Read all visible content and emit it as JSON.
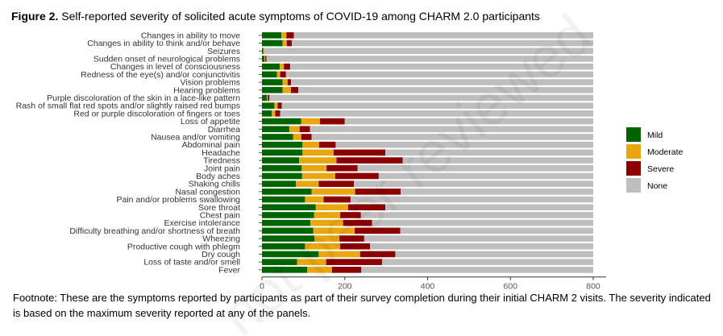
{
  "title_prefix": "Figure 2.",
  "title_text": " Self-reported severity of solicited acute symptoms of COVID-19 among CHARM 2.0 participants",
  "footnote": "Footnote: These are the symptoms reported by participants as part of their survey completion during their initial CHARM 2 visits. The severity indicated is based on the maximum severity reported at any of the panels.",
  "watermark": "not peer reviewed",
  "chart_data": {
    "type": "bar",
    "orientation": "horizontal",
    "stacked": true,
    "xlim": [
      0,
      800
    ],
    "xticks": [
      0,
      200,
      400,
      600,
      800
    ],
    "legend_position": "right",
    "categories": [
      "Changes in ability to move",
      "Changes in ability to think and/or behave",
      "Seizures",
      "Sudden onset of neurological problems",
      "Changes in level of consciousness",
      "Redness of the eye(s) and/or conjunctivitis",
      "Vision problems",
      "Hearing problems",
      "Purple discoloration of the skin in a lace-like pattern",
      "Rash of small flat red spots and/or slightly raised red bumps",
      "Red or purple discoloration of fingers or toes",
      "Loss of appetite",
      "Diarrhea",
      "Nausea and/or vomiting",
      "Abdominal pain",
      "Headache",
      "Tiredness",
      "Joint pain",
      "Body aches",
      "Shaking chills",
      "Nasal congestion",
      "Pain and/or problems swallowing",
      "Sore throat",
      "Chest pain",
      "Exercise intolerance",
      "Difficulty breathing and/or shortness of breath",
      "Wheezing",
      "Productive cough with phlegm",
      "Dry cough",
      "Loss of taste and/or smell",
      "Fever"
    ],
    "series": [
      {
        "name": "Mild",
        "color": "#006400",
        "values": [
          47,
          50,
          3,
          6,
          43,
          36,
          50,
          50,
          12,
          30,
          24,
          95,
          66,
          75,
          98,
          98,
          90,
          96,
          97,
          82,
          120,
          104,
          130,
          126,
          117,
          124,
          127,
          104,
          137,
          85,
          109
        ]
      },
      {
        "name": "Moderate",
        "color": "#E8A70F",
        "values": [
          12,
          10,
          2,
          2,
          10,
          8,
          12,
          20,
          2,
          8,
          8,
          45,
          25,
          20,
          40,
          75,
          90,
          60,
          80,
          55,
          105,
          45,
          78,
          63,
          79,
          100,
          60,
          85,
          100,
          70,
          60
        ]
      },
      {
        "name": "Severe",
        "color": "#8B0000",
        "values": [
          18,
          12,
          0,
          3,
          15,
          14,
          8,
          18,
          4,
          10,
          12,
          60,
          25,
          25,
          40,
          125,
          160,
          75,
          105,
          85,
          110,
          65,
          90,
          50,
          70,
          110,
          60,
          72,
          85,
          135,
          71
        ]
      },
      {
        "name": "None",
        "color": "#BEBEBE",
        "values": [
          723,
          728,
          795,
          789,
          732,
          742,
          730,
          712,
          782,
          752,
          756,
          600,
          684,
          680,
          622,
          502,
          460,
          569,
          518,
          578,
          465,
          586,
          502,
          561,
          534,
          466,
          553,
          539,
          478,
          510,
          560
        ]
      }
    ]
  }
}
